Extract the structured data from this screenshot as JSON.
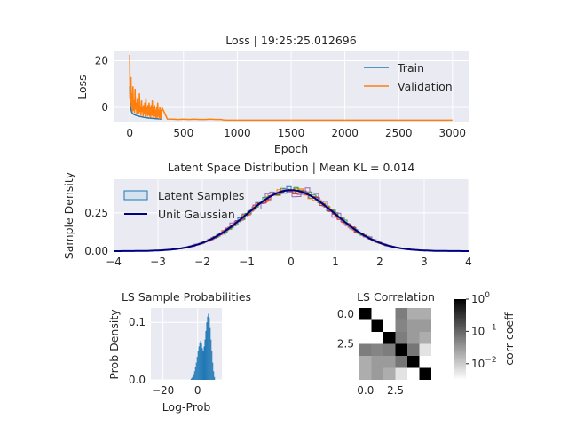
{
  "chart_data": [
    {
      "type": "line",
      "title": "Loss | 19:25:25.012696",
      "xlabel": "Epoch",
      "ylabel": "Loss",
      "xlim": [
        -150,
        3150
      ],
      "ylim": [
        -6.5,
        24
      ],
      "x_ticks": [
        0,
        500,
        1000,
        1500,
        2000,
        2500,
        3000
      ],
      "y_ticks": [
        0,
        20
      ],
      "grid": true,
      "legend": "top-right",
      "series": [
        {
          "name": "Train",
          "color": "#1f77b4",
          "x": [
            0,
            5,
            10,
            15,
            20,
            30,
            40,
            50,
            60,
            80,
            100,
            130,
            160,
            200,
            250,
            300
          ],
          "y": [
            9.0,
            2.0,
            0.0,
            -1.5,
            -2.2,
            -2.8,
            -3.1,
            -3.3,
            -3.5,
            -3.8,
            -4.0,
            -4.3,
            -4.5,
            -4.7,
            -4.9,
            -5.0
          ]
        },
        {
          "name": "Validation",
          "color": "#ff7f0e",
          "x": [
            0,
            3,
            6,
            9,
            12,
            16,
            20,
            25,
            30,
            35,
            40,
            45,
            50,
            55,
            60,
            65,
            70,
            75,
            80,
            85,
            90,
            95,
            100,
            105,
            110,
            115,
            120,
            125,
            130,
            135,
            140,
            145,
            150,
            155,
            160,
            165,
            170,
            175,
            180,
            185,
            190,
            195,
            200,
            205,
            210,
            215,
            220,
            225,
            230,
            235,
            240,
            245,
            250,
            255,
            260,
            265,
            270,
            275,
            280,
            285,
            290,
            295,
            300,
            350,
            400,
            450,
            500,
            550,
            600,
            650,
            700,
            750,
            800,
            850,
            870,
            900,
            1000,
            1500,
            2000,
            2500,
            3000
          ],
          "y": [
            22.5,
            4,
            9,
            2,
            13,
            0,
            6,
            -2,
            9,
            -1.5,
            3,
            -2.5,
            8,
            -1,
            2,
            -3,
            4,
            -2.5,
            1,
            -3,
            6,
            -2,
            0,
            -3.5,
            3,
            -2,
            0,
            -4,
            1,
            -3,
            2,
            -4,
            4,
            -3,
            0,
            -4,
            1,
            -3.5,
            2,
            -4,
            0,
            -4.5,
            1,
            -3.5,
            3,
            -4,
            0,
            -4.5,
            1,
            -4,
            -1,
            -4.5,
            0,
            -4.5,
            2,
            -4,
            -1,
            -5,
            0,
            -4.5,
            -1,
            -5,
            0,
            -5.0,
            -5.1,
            -5.2,
            -5.1,
            -5.2,
            -5.1,
            -5.2,
            -5.2,
            -5.1,
            -5.2,
            -5.2,
            -5.4,
            -5.5,
            -5.5,
            -5.5,
            -5.5,
            -5.5,
            -5.5
          ]
        }
      ]
    },
    {
      "type": "line",
      "title": "Latent Space Distribution | Mean KL = 0.014",
      "xlabel": "",
      "ylabel": "Sample Density",
      "xlim": [
        -4,
        4
      ],
      "ylim": [
        0,
        0.47
      ],
      "x_ticks": [
        -4,
        -3,
        -2,
        -1,
        0,
        1,
        2,
        3,
        4
      ],
      "y_ticks": [
        0.0,
        0.25
      ],
      "y_tick_labels": [
        "0.00",
        "0.25"
      ],
      "grid": true,
      "legend": "top-left",
      "series": [
        {
          "name": "Latent Samples",
          "color": "#1f77b4"
        },
        {
          "name": "Unit Gaussian",
          "color": "#000080"
        }
      ],
      "histogram_colors": [
        "#1f77b4",
        "#ff7f0e",
        "#2ca02c",
        "#d62728",
        "#9467bd"
      ]
    },
    {
      "type": "bar",
      "title": "LS Sample Probabilities",
      "xlabel": "Log-Prob",
      "ylabel": "Prob Density",
      "xlim": [
        -27,
        14
      ],
      "ylim": [
        0,
        0.125
      ],
      "x_ticks": [
        -20,
        0
      ],
      "y_ticks": [
        0.0,
        0.1
      ],
      "grid": true,
      "bins_start": -4,
      "bin_width": 0.5,
      "values": [
        0.002,
        0.004,
        0.006,
        0.01,
        0.015,
        0.022,
        0.03,
        0.04,
        0.05,
        0.058,
        0.065,
        0.068,
        0.063,
        0.055,
        0.05,
        0.058,
        0.07,
        0.085,
        0.1,
        0.11,
        0.115,
        0.108,
        0.09,
        0.07,
        0.05,
        0.03,
        0.015,
        0.005
      ]
    },
    {
      "type": "heatmap",
      "title": "LS Correlation",
      "x_ticks": [
        0.0,
        2.5
      ],
      "y_ticks": [
        0.0,
        2.5
      ],
      "x_tick_labels": [
        "0.0",
        "2.5"
      ],
      "y_tick_labels": [
        "0.0",
        "2.5"
      ],
      "colorbar_label": "corr coeff",
      "colorbar_ticks": [
        "10",
        "10",
        "10"
      ],
      "colorbar_exponents": [
        "0",
        "−1",
        "−2"
      ],
      "colorbar_log_range": [
        -2.5,
        0
      ],
      "matrix": [
        [
          1.0,
          0.002,
          0.003,
          0.06,
          0.02,
          0.02
        ],
        [
          0.002,
          1.0,
          0.002,
          0.05,
          0.03,
          0.03
        ],
        [
          0.003,
          0.002,
          1.0,
          0.06,
          0.03,
          0.02
        ],
        [
          0.06,
          0.05,
          0.06,
          1.0,
          0.07,
          0.006
        ],
        [
          0.02,
          0.03,
          0.03,
          0.07,
          1.0,
          0.003
        ],
        [
          0.02,
          0.03,
          0.02,
          0.006,
          0.003,
          1.0
        ]
      ]
    }
  ]
}
